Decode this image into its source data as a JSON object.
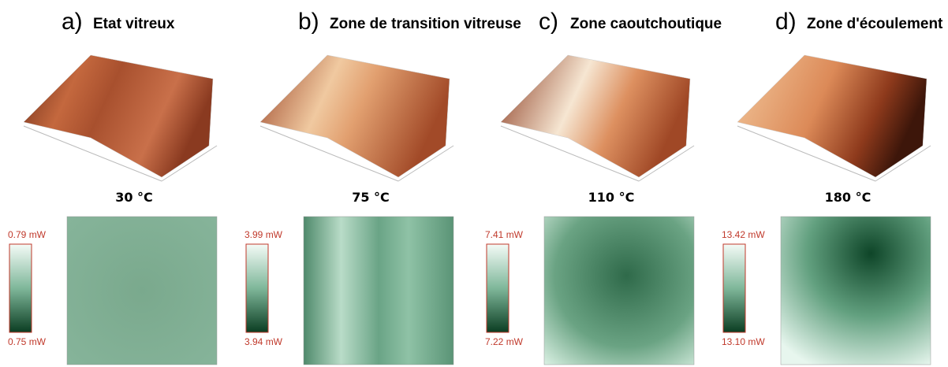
{
  "panels": [
    {
      "letter": "a)",
      "title": "Etat vitreux",
      "temperature": "30 °C",
      "scale_max": "0.79 mW",
      "scale_min": "0.75 mW"
    },
    {
      "letter": "b)",
      "title": "Zone de transition vitreuse",
      "temperature": "75 °C",
      "scale_max": "3.99 mW",
      "scale_min": "3.94 mW"
    },
    {
      "letter": "c)",
      "title": "Zone caoutchoutique",
      "temperature": "110 °C",
      "scale_max": "7.41 mW",
      "scale_min": "7.22 mW"
    },
    {
      "letter": "d)",
      "title": "Zone d'écoulement",
      "temperature": "180 °C",
      "scale_max": "13.42 mW",
      "scale_min": "13.10 mW"
    }
  ]
}
